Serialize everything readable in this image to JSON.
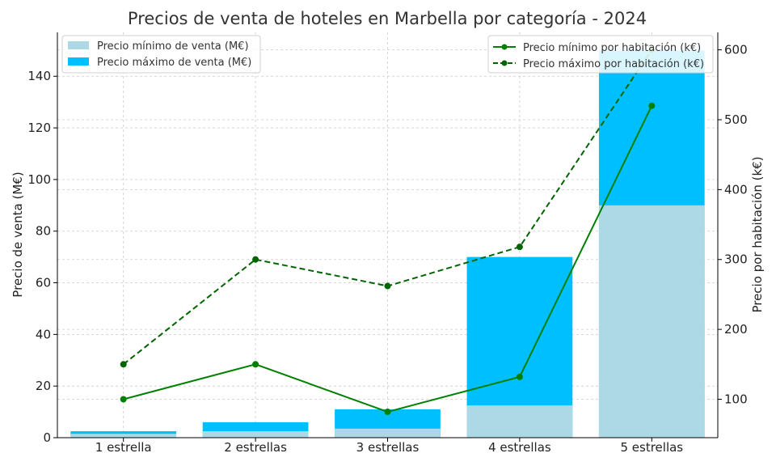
{
  "chart_data": {
    "type": "bar",
    "title": "Precios de venta de hoteles en Marbella por categoría - 2024",
    "xlabel": "",
    "ylabel": "Precio de venta (M€)",
    "y2label": "Precio por habitación (k€)",
    "categories": [
      "1 estrella",
      "2 estrellas",
      "3 estrellas",
      "4 estrellas",
      "5 estrellas"
    ],
    "ylim": [
      0,
      157
    ],
    "yticks": [
      0,
      20,
      40,
      60,
      80,
      100,
      120,
      140
    ],
    "y2lim": [
      45,
      625
    ],
    "y2ticks": [
      100,
      200,
      300,
      400,
      500,
      600
    ],
    "grid": true,
    "bar_series": [
      {
        "name": "Precio mínimo de venta (M€)",
        "values": [
          1.5,
          2.5,
          3.5,
          12.5,
          90
        ],
        "color": "#add8e6"
      },
      {
        "name": "Precio máximo de venta (M€)",
        "values": [
          2.5,
          6,
          11,
          70,
          150
        ],
        "color": "#00bfff"
      }
    ],
    "line_series": [
      {
        "name": "Precio mínimo por habitación (k€)",
        "values": [
          100,
          150,
          82,
          132,
          520
        ],
        "color": "#008000",
        "dash": "solid"
      },
      {
        "name": "Precio máximo por habitación (k€)",
        "values": [
          150,
          300,
          262,
          318,
          600
        ],
        "color": "#006400",
        "dash": "dashed"
      }
    ],
    "legend_left": "top-left",
    "legend_right": "top-right"
  }
}
